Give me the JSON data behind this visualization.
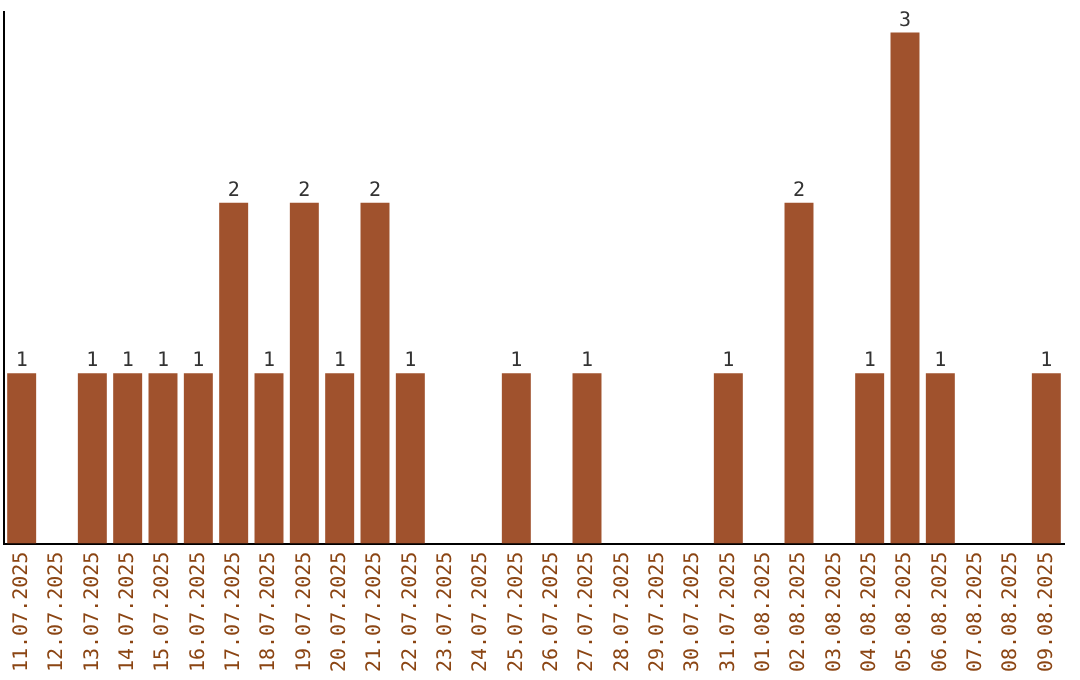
{
  "chart_data": {
    "type": "bar",
    "categories": [
      "11.07.2025",
      "12.07.2025",
      "13.07.2025",
      "14.07.2025",
      "15.07.2025",
      "16.07.2025",
      "17.07.2025",
      "18.07.2025",
      "19.07.2025",
      "20.07.2025",
      "21.07.2025",
      "22.07.2025",
      "23.07.2025",
      "24.07.2025",
      "25.07.2025",
      "26.07.2025",
      "27.07.2025",
      "28.07.2025",
      "29.07.2025",
      "30.07.2025",
      "31.07.2025",
      "01.08.2025",
      "02.08.2025",
      "03.08.2025",
      "04.08.2025",
      "05.08.2025",
      "06.08.2025",
      "07.08.2025",
      "08.08.2025",
      "09.08.2025"
    ],
    "values": [
      1,
      0,
      1,
      1,
      1,
      1,
      2,
      1,
      2,
      1,
      2,
      1,
      0,
      0,
      1,
      0,
      1,
      0,
      0,
      0,
      1,
      0,
      2,
      0,
      1,
      3,
      1,
      0,
      0,
      1
    ],
    "value_labels": [
      "1",
      null,
      "1",
      "1",
      "1",
      "1",
      "2",
      "1",
      "2",
      "1",
      "2",
      "1",
      null,
      null,
      "1",
      null,
      "1",
      null,
      null,
      null,
      "1",
      null,
      "2",
      null,
      "1",
      "3",
      "1",
      null,
      null,
      "1"
    ],
    "color": "#a0522d",
    "ylim": [
      0,
      3.12
    ],
    "tick_labels": "x",
    "grid": false,
    "legend": false
  }
}
